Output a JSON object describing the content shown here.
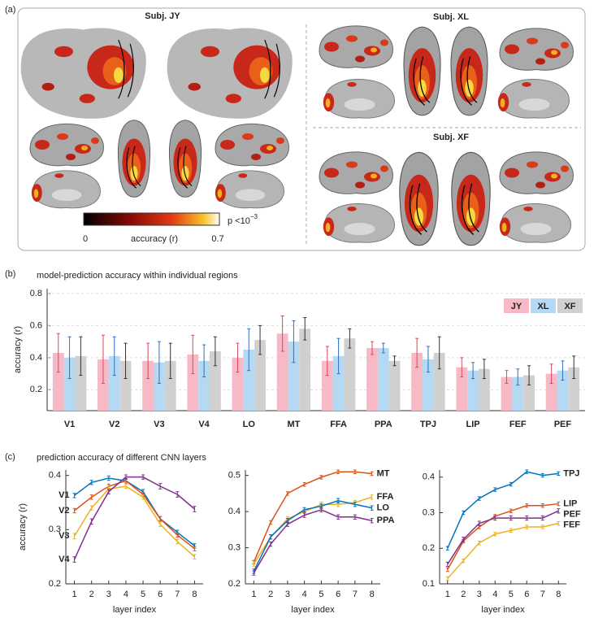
{
  "panel_labels": [
    "(a)",
    "(b)",
    "(c)"
  ],
  "panel_a": {
    "subjects": [
      "Subj. JY",
      "Subj. XL",
      "Subj. XF"
    ],
    "colorbar": {
      "min": 0,
      "max": 0.7,
      "label": "accuracy (r)",
      "p_label": "p <10",
      "p_exponent": "−3"
    }
  },
  "chart_data": [
    {
      "type": "bar",
      "title": "model-prediction accuracy within individual regions",
      "y_label": "accuracy (r)",
      "categories": [
        "V1",
        "V2",
        "V3",
        "V4",
        "LO",
        "MT",
        "FFA",
        "PPA",
        "TPJ",
        "LIP",
        "FEF",
        "PEF"
      ],
      "series": [
        {
          "name": "JY",
          "color": "#f7b9c5",
          "error_color": "#d9485f",
          "values": [
            0.43,
            0.39,
            0.38,
            0.42,
            0.4,
            0.55,
            0.38,
            0.46,
            0.43,
            0.34,
            0.28,
            0.3
          ],
          "errors": [
            0.12,
            0.15,
            0.11,
            0.12,
            0.09,
            0.11,
            0.09,
            0.04,
            0.09,
            0.06,
            0.04,
            0.06
          ]
        },
        {
          "name": "XL",
          "color": "#b5d9f2",
          "error_color": "#2f6fc0",
          "values": [
            0.4,
            0.41,
            0.37,
            0.38,
            0.45,
            0.5,
            0.41,
            0.46,
            0.39,
            0.32,
            0.28,
            0.32
          ],
          "errors": [
            0.13,
            0.12,
            0.13,
            0.1,
            0.13,
            0.13,
            0.11,
            0.03,
            0.08,
            0.05,
            0.05,
            0.06
          ]
        },
        {
          "name": "XF",
          "color": "#d0d0d0",
          "error_color": "#333333",
          "values": [
            0.41,
            0.38,
            0.38,
            0.44,
            0.51,
            0.58,
            0.52,
            0.38,
            0.43,
            0.33,
            0.29,
            0.34
          ],
          "errors": [
            0.12,
            0.11,
            0.11,
            0.09,
            0.09,
            0.07,
            0.06,
            0.03,
            0.1,
            0.06,
            0.06,
            0.07
          ]
        }
      ],
      "ylim": [
        0.07,
        0.83
      ],
      "yticks": [
        0.2,
        0.4,
        0.6,
        0.8
      ],
      "grid": true,
      "legend": "upper right"
    },
    {
      "type": "line",
      "title": "prediction accuracy of different CNN layers",
      "x_label": "layer index",
      "y_label": "accuracy (r)",
      "x": [
        1,
        2,
        3,
        4,
        5,
        6,
        7,
        8
      ],
      "xlim": [
        0.5,
        8.5
      ],
      "xticks": [
        1,
        2,
        3,
        4,
        5,
        6,
        7,
        8
      ],
      "ylim": [
        0.2,
        0.41
      ],
      "yticks": [
        0.2,
        0.3,
        0.4
      ],
      "series": [
        {
          "name": "V1",
          "color": "#0072bd",
          "values": [
            0.363,
            0.387,
            0.395,
            0.39,
            0.37,
            0.32,
            0.295,
            0.27
          ],
          "errors": [
            0.004,
            0.004,
            0.004,
            0.004,
            0.004,
            0.004,
            0.004,
            0.004
          ]
        },
        {
          "name": "V2",
          "color": "#d95319",
          "values": [
            0.335,
            0.36,
            0.38,
            0.39,
            0.365,
            0.32,
            0.29,
            0.265
          ],
          "errors": [
            0.004,
            0.004,
            0.004,
            0.004,
            0.004,
            0.004,
            0.004,
            0.004
          ]
        },
        {
          "name": "V3",
          "color": "#edb120",
          "values": [
            0.288,
            0.34,
            0.375,
            0.38,
            0.36,
            0.31,
            0.278,
            0.25
          ],
          "errors": [
            0.005,
            0.004,
            0.004,
            0.004,
            0.004,
            0.004,
            0.004,
            0.004
          ]
        },
        {
          "name": "V4",
          "color": "#7e2f8e",
          "values": [
            0.245,
            0.315,
            0.37,
            0.397,
            0.397,
            0.38,
            0.365,
            0.338
          ],
          "errors": [
            0.005,
            0.005,
            0.004,
            0.004,
            0.004,
            0.005,
            0.005,
            0.005
          ]
        }
      ]
    },
    {
      "type": "line",
      "x_label": "layer index",
      "x": [
        1,
        2,
        3,
        4,
        5,
        6,
        7,
        8
      ],
      "xlim": [
        0.5,
        8.5
      ],
      "xticks": [
        1,
        2,
        3,
        4,
        5,
        6,
        7,
        8
      ],
      "ylim": [
        0.2,
        0.515
      ],
      "yticks": [
        0.2,
        0.3,
        0.4,
        0.5
      ],
      "series": [
        {
          "name": "MT",
          "color": "#d95319",
          "values": [
            0.26,
            0.37,
            0.45,
            0.475,
            0.495,
            0.51,
            0.51,
            0.505
          ],
          "errors": [
            0.005,
            0.005,
            0.005,
            0.005,
            0.005,
            0.005,
            0.005,
            0.005
          ]
        },
        {
          "name": "FFA",
          "color": "#edb120",
          "values": [
            0.255,
            0.33,
            0.38,
            0.4,
            0.42,
            0.42,
            0.425,
            0.44
          ],
          "errors": [
            0.006,
            0.006,
            0.006,
            0.006,
            0.006,
            0.006,
            0.006,
            0.006
          ]
        },
        {
          "name": "LO",
          "color": "#0072bd",
          "values": [
            0.235,
            0.33,
            0.375,
            0.405,
            0.415,
            0.43,
            0.42,
            0.41
          ],
          "errors": [
            0.006,
            0.006,
            0.006,
            0.006,
            0.006,
            0.006,
            0.006,
            0.006
          ]
        },
        {
          "name": "PPA",
          "color": "#7e2f8e",
          "values": [
            0.23,
            0.31,
            0.365,
            0.39,
            0.405,
            0.385,
            0.385,
            0.375
          ],
          "errors": [
            0.006,
            0.006,
            0.006,
            0.006,
            0.006,
            0.006,
            0.006,
            0.006
          ]
        }
      ]
    },
    {
      "type": "line",
      "x_label": "layer index",
      "x": [
        1,
        2,
        3,
        4,
        5,
        6,
        7,
        8
      ],
      "xlim": [
        0.5,
        8.5
      ],
      "xticks": [
        1,
        2,
        3,
        4,
        5,
        6,
        7,
        8
      ],
      "ylim": [
        0.1,
        0.42
      ],
      "yticks": [
        0.1,
        0.2,
        0.3,
        0.4
      ],
      "series": [
        {
          "name": "TPJ",
          "color": "#0072bd",
          "values": [
            0.2,
            0.3,
            0.34,
            0.365,
            0.38,
            0.415,
            0.405,
            0.41
          ],
          "errors": [
            0.005,
            0.005,
            0.005,
            0.005,
            0.005,
            0.005,
            0.005,
            0.005
          ]
        },
        {
          "name": "LIP",
          "color": "#d95319",
          "values": [
            0.14,
            0.22,
            0.26,
            0.29,
            0.305,
            0.32,
            0.32,
            0.325
          ],
          "errors": [
            0.005,
            0.005,
            0.005,
            0.005,
            0.005,
            0.005,
            0.005,
            0.005
          ]
        },
        {
          "name": "PEF",
          "color": "#7e2f8e",
          "values": [
            0.155,
            0.225,
            0.27,
            0.285,
            0.285,
            0.285,
            0.285,
            0.305
          ],
          "errors": [
            0.006,
            0.006,
            0.006,
            0.006,
            0.006,
            0.006,
            0.006,
            0.006
          ]
        },
        {
          "name": "FEF",
          "color": "#edb120",
          "values": [
            0.115,
            0.165,
            0.215,
            0.24,
            0.25,
            0.26,
            0.26,
            0.27
          ],
          "errors": [
            0.005,
            0.005,
            0.005,
            0.005,
            0.005,
            0.005,
            0.005,
            0.005
          ]
        }
      ]
    }
  ]
}
